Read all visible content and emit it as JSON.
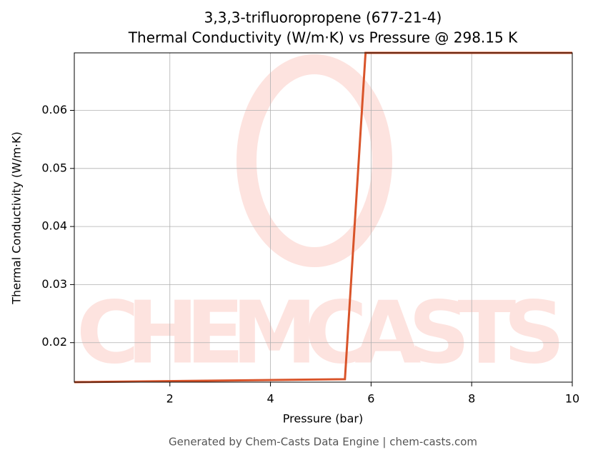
{
  "chart_data": {
    "type": "line",
    "title": "3,3,3-trifluoropropene (677-21-4)",
    "subtitle": "Thermal Conductivity (W/m·K) vs Pressure @ 298.15 K",
    "x_label": "Pressure (bar)",
    "y_label": "Thermal Conductivity (W/m·K)",
    "footer": "Generated by Chem-Casts Data Engine | chem-casts.com",
    "watermark": "CHEMCASTS",
    "x": [
      0.1,
      5.48,
      5.89,
      10
    ],
    "series": [
      {
        "name": "Thermal Conductivity",
        "color": "#d9542a",
        "values": [
          0.0132,
          0.0137,
          0.0699,
          0.0699
        ]
      }
    ],
    "xlim": [
      0.1,
      10
    ],
    "xticks": [
      2,
      4,
      6,
      8,
      10
    ],
    "ylim": [
      0.0132,
      0.0699
    ],
    "yticks": [
      0.02,
      0.03,
      0.04,
      0.05,
      0.06
    ],
    "grid": true
  }
}
